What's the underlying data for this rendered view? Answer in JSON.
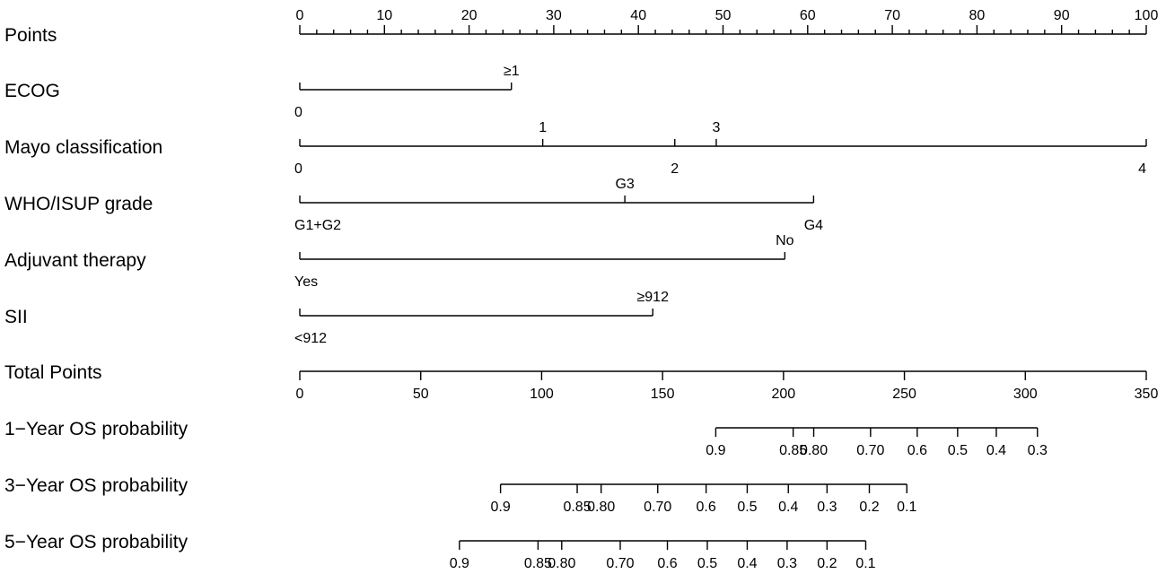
{
  "chart_data": {
    "type": "nomogram",
    "rows": [
      {
        "label": "Points",
        "kind": "scale",
        "range": [
          0,
          100
        ],
        "ticks": [
          0,
          10,
          20,
          30,
          40,
          50,
          60,
          70,
          80,
          90,
          100
        ],
        "minor_step": 2
      },
      {
        "label": "ECOG",
        "kind": "variable",
        "levels": [
          {
            "label": "0",
            "points": 0
          },
          {
            "label": "≥1",
            "points": 25
          }
        ]
      },
      {
        "label": "Mayo classification",
        "kind": "variable",
        "levels": [
          {
            "label": "0",
            "points": 0
          },
          {
            "label": "1",
            "points": 28.7
          },
          {
            "label": "2",
            "points": 44.3
          },
          {
            "label": "3",
            "points": 49.2
          },
          {
            "label": "4",
            "points": 100
          }
        ]
      },
      {
        "label": "WHO/ISUP grade",
        "kind": "variable",
        "levels": [
          {
            "label": "G1+G2",
            "points": 0
          },
          {
            "label": "G3",
            "points": 38.4
          },
          {
            "label": "G4",
            "points": 60.7
          }
        ]
      },
      {
        "label": "Adjuvant therapy",
        "kind": "variable",
        "levels": [
          {
            "label": "Yes",
            "points": 0
          },
          {
            "label": "No",
            "points": 57.3
          }
        ]
      },
      {
        "label": "SII",
        "kind": "variable",
        "levels": [
          {
            "label": "<912",
            "points": 0
          },
          {
            "label": "≥912",
            "points": 41.7
          }
        ]
      },
      {
        "label": "Total Points",
        "kind": "scale",
        "range": [
          0,
          350
        ],
        "ticks": [
          0,
          50,
          100,
          150,
          200,
          250,
          300,
          350
        ]
      },
      {
        "label": "1−Year OS probability",
        "kind": "probability",
        "ticks": [
          {
            "label": "0.9",
            "total": 172
          },
          {
            "label": "0.85",
            "total": 204
          },
          {
            "label": "0.80",
            "total": 212.5
          },
          {
            "label": "0.70",
            "total": 236
          },
          {
            "label": "0.6",
            "total": 255.3
          },
          {
            "label": "0.5",
            "total": 272
          },
          {
            "label": "0.4",
            "total": 288
          },
          {
            "label": "0.3",
            "total": 305
          }
        ]
      },
      {
        "label": "3−Year OS probability",
        "kind": "probability",
        "ticks": [
          {
            "label": "0.9",
            "total": 83
          },
          {
            "label": "0.85",
            "total": 114.7
          },
          {
            "label": "0.80",
            "total": 124.6
          },
          {
            "label": "0.70",
            "total": 148
          },
          {
            "label": "0.6",
            "total": 168
          },
          {
            "label": "0.5",
            "total": 185
          },
          {
            "label": "0.4",
            "total": 202
          },
          {
            "label": "0.3",
            "total": 218
          },
          {
            "label": "0.2",
            "total": 235.5
          },
          {
            "label": "0.1",
            "total": 251
          }
        ]
      },
      {
        "label": "5−Year OS probability",
        "kind": "probability",
        "ticks": [
          {
            "label": "0.9",
            "total": 66
          },
          {
            "label": "0.85",
            "total": 98.5
          },
          {
            "label": "0.80",
            "total": 108.3
          },
          {
            "label": "0.70",
            "total": 132.5
          },
          {
            "label": "0.6",
            "total": 152
          },
          {
            "label": "0.5",
            "total": 168.5
          },
          {
            "label": "0.4",
            "total": 185
          },
          {
            "label": "0.3",
            "total": 201.5
          },
          {
            "label": "0.2",
            "total": 218
          },
          {
            "label": "0.1",
            "total": 234
          }
        ]
      }
    ]
  }
}
